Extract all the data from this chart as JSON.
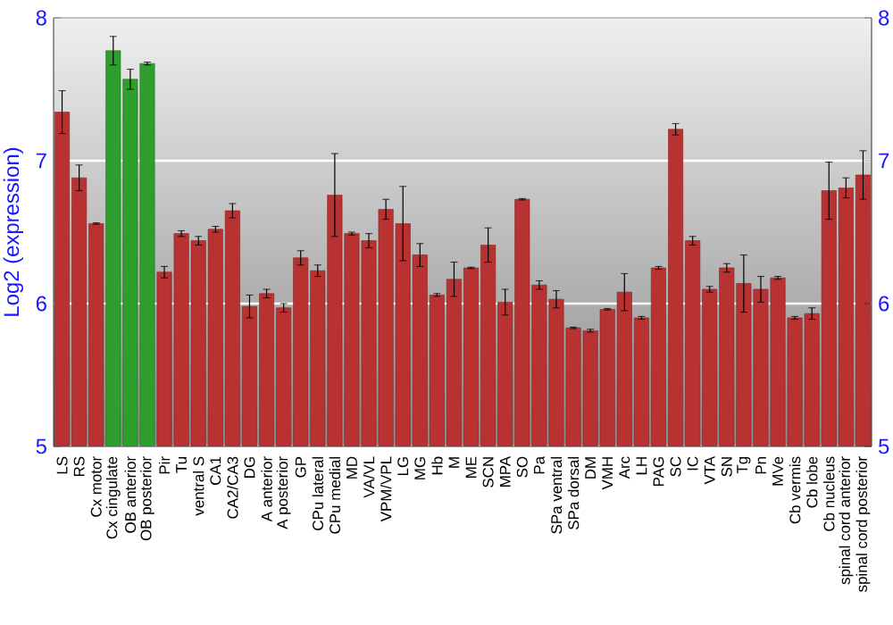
{
  "chart_data": {
    "type": "bar",
    "ylabel": "Log2 (expression)",
    "categories": [
      "LS",
      "RS",
      "Cx motor",
      "Cx cingulate",
      "OB anterior",
      "OB posterior",
      "Pir",
      "Tu",
      "ventral S",
      "CA1",
      "CA2/CA3",
      "DG",
      "A anterior",
      "A posterior",
      "GP",
      "CPu lateral",
      "CPu medial",
      "MD",
      "VA/VL",
      "VPM/VPL",
      "LG",
      "MG",
      "Hb",
      "M",
      "ME",
      "SCN",
      "MPA",
      "SO",
      "Pa",
      "SPa ventral",
      "SPa dorsal",
      "DM",
      "VMH",
      "Arc",
      "LH",
      "PAG",
      "SC",
      "IC",
      "VTA",
      "SN",
      "Tg",
      "Pn",
      "MVe",
      "Cb vermis",
      "Cb lobe",
      "Cb nucleus",
      "spinal cord anterior",
      "spinal cord posterior"
    ],
    "values": [
      7.34,
      6.88,
      6.56,
      7.77,
      7.57,
      7.68,
      6.22,
      6.49,
      6.44,
      6.52,
      6.65,
      5.98,
      6.07,
      5.97,
      6.32,
      6.23,
      6.76,
      6.49,
      6.44,
      6.66,
      6.56,
      6.34,
      6.06,
      6.17,
      6.25,
      6.41,
      6.01,
      6.73,
      6.13,
      6.03,
      5.83,
      5.81,
      5.96,
      6.08,
      5.9,
      6.25,
      7.22,
      6.44,
      6.1,
      6.25,
      6.14,
      6.1,
      6.18,
      5.9,
      5.93,
      6.79,
      6.81,
      6.9
    ],
    "errors": [
      0.15,
      0.09,
      0.005,
      0.1,
      0.07,
      0.01,
      0.04,
      0.02,
      0.03,
      0.02,
      0.05,
      0.08,
      0.03,
      0.03,
      0.05,
      0.04,
      0.29,
      0.01,
      0.05,
      0.07,
      0.26,
      0.08,
      0.01,
      0.12,
      0.005,
      0.12,
      0.09,
      0.005,
      0.03,
      0.06,
      0.005,
      0.01,
      0.005,
      0.13,
      0.01,
      0.01,
      0.04,
      0.03,
      0.02,
      0.03,
      0.2,
      0.09,
      0.01,
      0.01,
      0.04,
      0.2,
      0.07,
      0.17
    ],
    "colors": [
      "#b83232",
      "#b83232",
      "#b83232",
      "#2e9e2e",
      "#2e9e2e",
      "#2e9e2e",
      "#b83232",
      "#b83232",
      "#b83232",
      "#b83232",
      "#b83232",
      "#b83232",
      "#b83232",
      "#b83232",
      "#b83232",
      "#b83232",
      "#b83232",
      "#b83232",
      "#b83232",
      "#b83232",
      "#b83232",
      "#b83232",
      "#b83232",
      "#b83232",
      "#b83232",
      "#b83232",
      "#b83232",
      "#b83232",
      "#b83232",
      "#b83232",
      "#b83232",
      "#b83232",
      "#b83232",
      "#b83232",
      "#b83232",
      "#b83232",
      "#b83232",
      "#b83232",
      "#b83232",
      "#b83232",
      "#b83232",
      "#b83232",
      "#b83232",
      "#b83232",
      "#b83232",
      "#b83232",
      "#b83232",
      "#b83232"
    ],
    "ylim": [
      5,
      8
    ],
    "yticks": [
      5,
      6,
      7,
      8
    ],
    "y2lim": [
      5,
      8
    ],
    "y2ticks": [
      5,
      6,
      7,
      8
    ],
    "grid": "y"
  }
}
